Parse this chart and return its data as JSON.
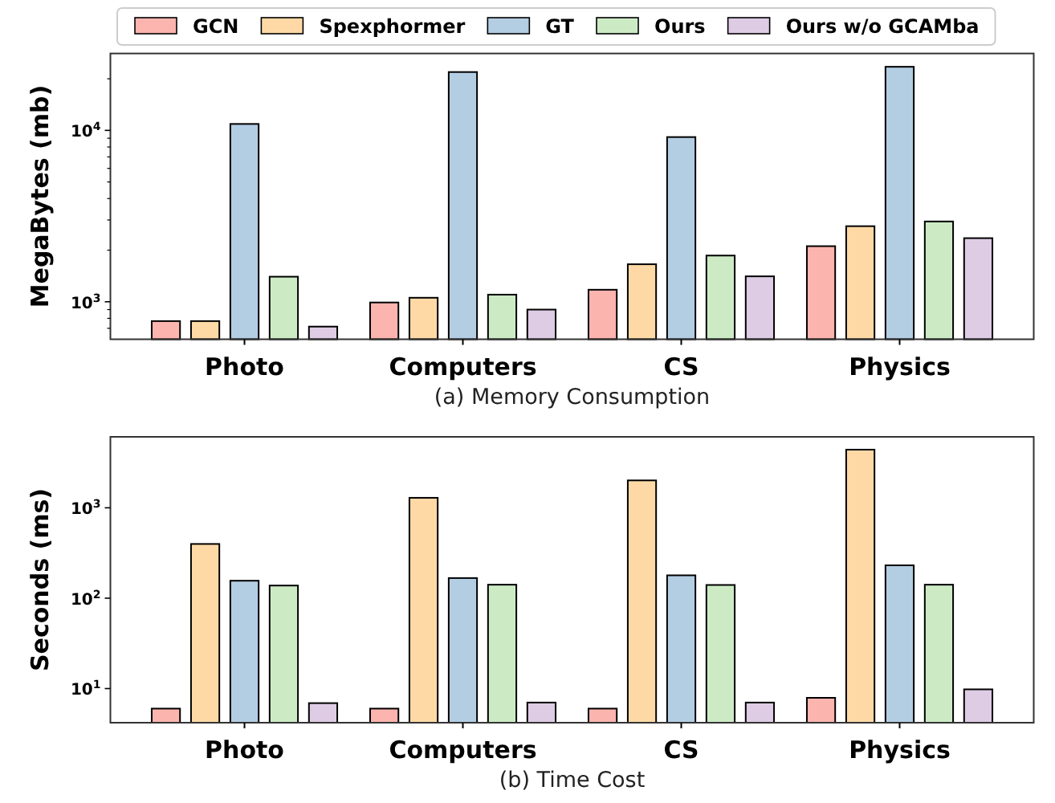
{
  "chart_data": [
    {
      "type": "bar",
      "xlabel": "(a) Memory Consumption",
      "ylabel": "MegaBytes (mb)",
      "categories": [
        "Photo",
        "Computers",
        "CS",
        "Physics"
      ],
      "log": "y",
      "legend": "top",
      "ylim": [
        604,
        28100
      ],
      "yticks": [
        {
          "value": 1000,
          "label": "10$^{3}$"
        },
        {
          "value": 10000,
          "label": "10$^{4}$"
        },
        {
          "value": 700,
          "label": null
        },
        {
          "value": 800,
          "label": null
        },
        {
          "value": 900,
          "label": null
        },
        {
          "value": 2000,
          "label": null
        },
        {
          "value": 3000,
          "label": null
        },
        {
          "value": 4000,
          "label": null
        },
        {
          "value": 5000,
          "label": null
        },
        {
          "value": 6000,
          "label": null
        },
        {
          "value": 7000,
          "label": null
        },
        {
          "value": 8000,
          "label": null
        },
        {
          "value": 9000,
          "label": null
        },
        {
          "value": 20000,
          "label": null
        }
      ],
      "series": [
        {
          "name": "GCN",
          "color": "#fbb4ae",
          "values": [
            771,
            990,
            1175,
            2110
          ]
        },
        {
          "name": "Spexphormer",
          "color": "#fed9a6",
          "values": [
            771,
            1055,
            1655,
            2760
          ]
        },
        {
          "name": "GT",
          "color": "#b3cde3",
          "values": [
            10900,
            21900,
            9140,
            23500
          ]
        },
        {
          "name": "Ours",
          "color": "#ccebc5",
          "values": [
            1400,
            1100,
            1860,
            2940
          ]
        },
        {
          "name": "Ours w/o GCAMba",
          "color": "#decbe4",
          "values": [
            716,
            900,
            1407,
            2350
          ]
        }
      ]
    },
    {
      "type": "bar",
      "xlabel": "(b) Time Cost",
      "ylabel": "Seconds (ms)",
      "categories": [
        "Photo",
        "Computers",
        "CS",
        "Physics"
      ],
      "log": "y",
      "ylim": [
        4.19,
        6100
      ],
      "yticks": [
        {
          "value": 10,
          "label": "10$^{1}$"
        },
        {
          "value": 100,
          "label": "10$^{2}$"
        },
        {
          "value": 1000,
          "label": "10$^{3}$"
        }
      ],
      "series": [
        {
          "color": "#fbb4ae",
          "values": [
            6.0,
            6.0,
            6.0,
            7.9
          ]
        },
        {
          "color": "#fed9a6",
          "values": [
            398,
            1290,
            2010,
            4400
          ]
        },
        {
          "color": "#b3cde3",
          "values": [
            156,
            167,
            179,
            231
          ]
        },
        {
          "color": "#ccebc5",
          "values": [
            138,
            141,
            140,
            141
          ]
        },
        {
          "color": "#decbe4",
          "values": [
            6.9,
            7,
            7,
            9.8
          ]
        }
      ]
    }
  ]
}
